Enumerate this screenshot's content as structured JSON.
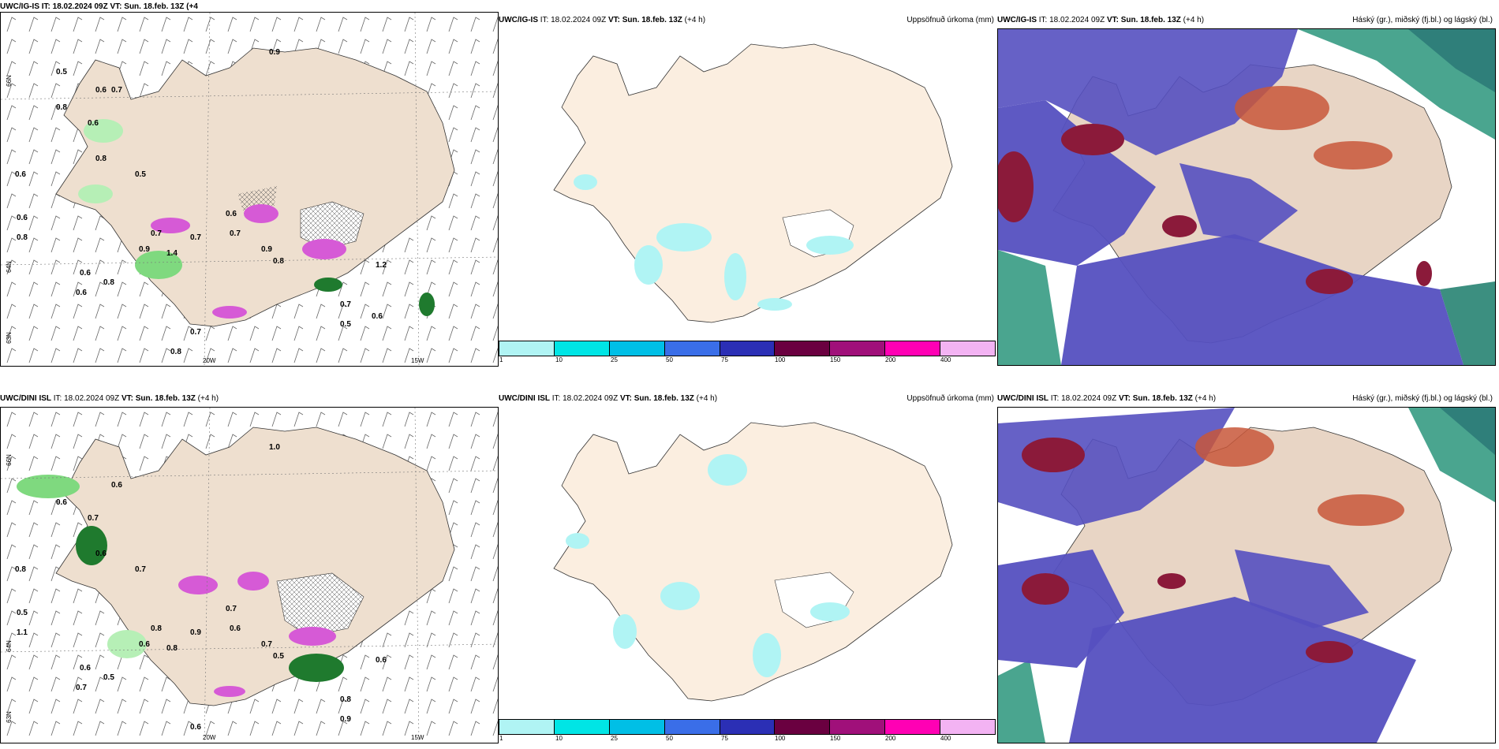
{
  "rows": [
    {
      "model": "UWC/IG-IS",
      "it": "IT: 18.02.2024 09Z",
      "vt": "VT: Sun. 18.feb. 13Z",
      "lead": "(+4 h)",
      "left_title_partial": "UWC/IG-IS IT: 18.02.2024 09Z VT: Sun. 18.feb. 13Z (+4",
      "left_title_wrap": "h)"
    },
    {
      "model": "UWC/DINI ISL",
      "it": "IT: 18.02.2024 09Z",
      "vt": "VT: Sun. 18.feb. 13Z",
      "lead": "(+4 h)"
    }
  ],
  "precip_label": "Uppsöfnuð úrkoma (mm)",
  "cloud_label": "Háský (gr.), miðský (fj.bl.) og lágský (bl.)",
  "colorbar": {
    "labels": [
      "1",
      "10",
      "25",
      "50",
      "75",
      "100",
      "150",
      "200",
      "400"
    ],
    "colors": [
      "#b0f4f4",
      "#00e5e5",
      "#00bfe6",
      "#3a6ee8",
      "#2b2fb5",
      "#6a0040",
      "#a0107a",
      "#ff00b4",
      "#f3b3f3"
    ]
  },
  "axis_labels": {
    "lat1": "66N",
    "lat2": "64N",
    "lat3": "63N",
    "lon1": "20W",
    "lon2": "15W"
  },
  "wind_values_top": [
    "0.5",
    "0.6",
    "0.7",
    "0.9",
    "0.8",
    "0.6",
    "0.6",
    "0.8",
    "0.5",
    "0.6",
    "0.8",
    "0.6",
    "0.6",
    "0.8",
    "0.7",
    "0.7",
    "0.7",
    "0.9",
    "1.4",
    "0.9",
    "0.8",
    "0.7",
    "1.2",
    "0.5",
    "0.6",
    "0.7",
    "0.8",
    "0.6"
  ],
  "wind_values_bottom": [
    "0.6",
    "1.0",
    "0.6",
    "0.7",
    "0.8",
    "0.6",
    "0.7",
    "0.5",
    "1.1",
    "0.6",
    "0.7",
    "0.5",
    "0.8",
    "0.9",
    "0.6",
    "0.7",
    "0.8",
    "0.6",
    "0.5",
    "0.8",
    "0.6",
    "0.9",
    "0.7",
    "0.6"
  ]
}
